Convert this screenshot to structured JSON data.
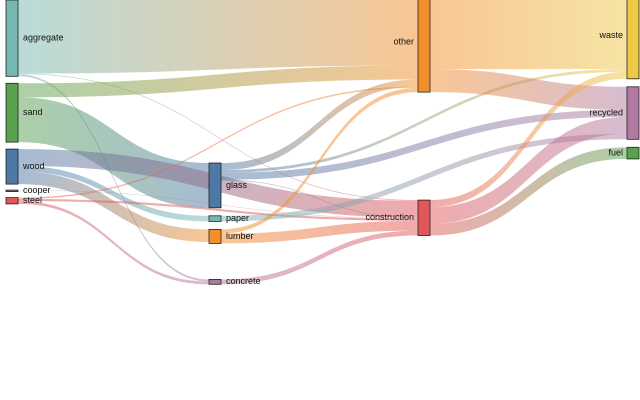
{
  "chart_data": {
    "type": "sankey",
    "title": "",
    "nodes": [
      {
        "id": "aggregate",
        "label": "aggregate",
        "column": 0,
        "color": "#76b7b2"
      },
      {
        "id": "sand",
        "label": "sand",
        "column": 0,
        "color": "#59a14f"
      },
      {
        "id": "wood",
        "label": "wood",
        "column": 0,
        "color": "#4e79a7"
      },
      {
        "id": "cooper",
        "label": "cooper",
        "column": 0,
        "color": "#8c8c8c"
      },
      {
        "id": "steel",
        "label": "steel",
        "column": 0,
        "color": "#e15759"
      },
      {
        "id": "glass",
        "label": "glass",
        "column": 1,
        "color": "#4e79a7"
      },
      {
        "id": "paper",
        "label": "paper",
        "column": 1,
        "color": "#76b7b2"
      },
      {
        "id": "lumber",
        "label": "lumber",
        "column": 1,
        "color": "#f28e2b"
      },
      {
        "id": "concrete",
        "label": "concrete",
        "column": 1,
        "color": "#b07aa1"
      },
      {
        "id": "other",
        "label": "other",
        "column": 2,
        "color": "#f28e2b"
      },
      {
        "id": "construction",
        "label": "construction",
        "column": 2,
        "color": "#e15759"
      },
      {
        "id": "waste",
        "label": "waste",
        "column": 3,
        "color": "#edc948"
      },
      {
        "id": "recycled",
        "label": "recycled",
        "column": 3,
        "color": "#b07aa1"
      },
      {
        "id": "fuel",
        "label": "fuel",
        "column": 3,
        "color": "#59a14f"
      }
    ],
    "links": [
      {
        "source": "aggregate",
        "target": "other",
        "value": 52.5
      },
      {
        "source": "aggregate",
        "target": "concrete",
        "value": 1.5
      },
      {
        "source": "aggregate",
        "target": "construction",
        "value": 0.5
      },
      {
        "source": "sand",
        "target": "other",
        "value": 10
      },
      {
        "source": "sand",
        "target": "glass",
        "value": 32
      },
      {
        "source": "wood",
        "target": "paper",
        "value": 4
      },
      {
        "source": "wood",
        "target": "lumber",
        "value": 9
      },
      {
        "source": "wood",
        "target": "construction",
        "value": 12
      },
      {
        "source": "cooper",
        "target": "construction",
        "value": 0.3
      },
      {
        "source": "steel",
        "target": "concrete",
        "value": 2
      },
      {
        "source": "steel",
        "target": "construction",
        "value": 1.5
      },
      {
        "source": "steel",
        "target": "other",
        "value": 1
      },
      {
        "source": "glass",
        "target": "other",
        "value": 5
      },
      {
        "source": "glass",
        "target": "recycled",
        "value": 5
      },
      {
        "source": "glass",
        "target": "waste",
        "value": 2
      },
      {
        "source": "glass",
        "target": "construction",
        "value": 0.5
      },
      {
        "source": "paper",
        "target": "recycled",
        "value": 4
      },
      {
        "source": "lumber",
        "target": "construction",
        "value": 7
      },
      {
        "source": "lumber",
        "target": "other",
        "value": 3
      },
      {
        "source": "concrete",
        "target": "construction",
        "value": 3.5
      },
      {
        "source": "other",
        "target": "waste",
        "value": 55
      },
      {
        "source": "other",
        "target": "recycled",
        "value": 16.5
      },
      {
        "source": "construction",
        "target": "waste",
        "value": 5
      },
      {
        "source": "construction",
        "target": "recycled",
        "value": 12
      },
      {
        "source": "construction",
        "target": "fuel",
        "value": 8.3
      }
    ]
  }
}
